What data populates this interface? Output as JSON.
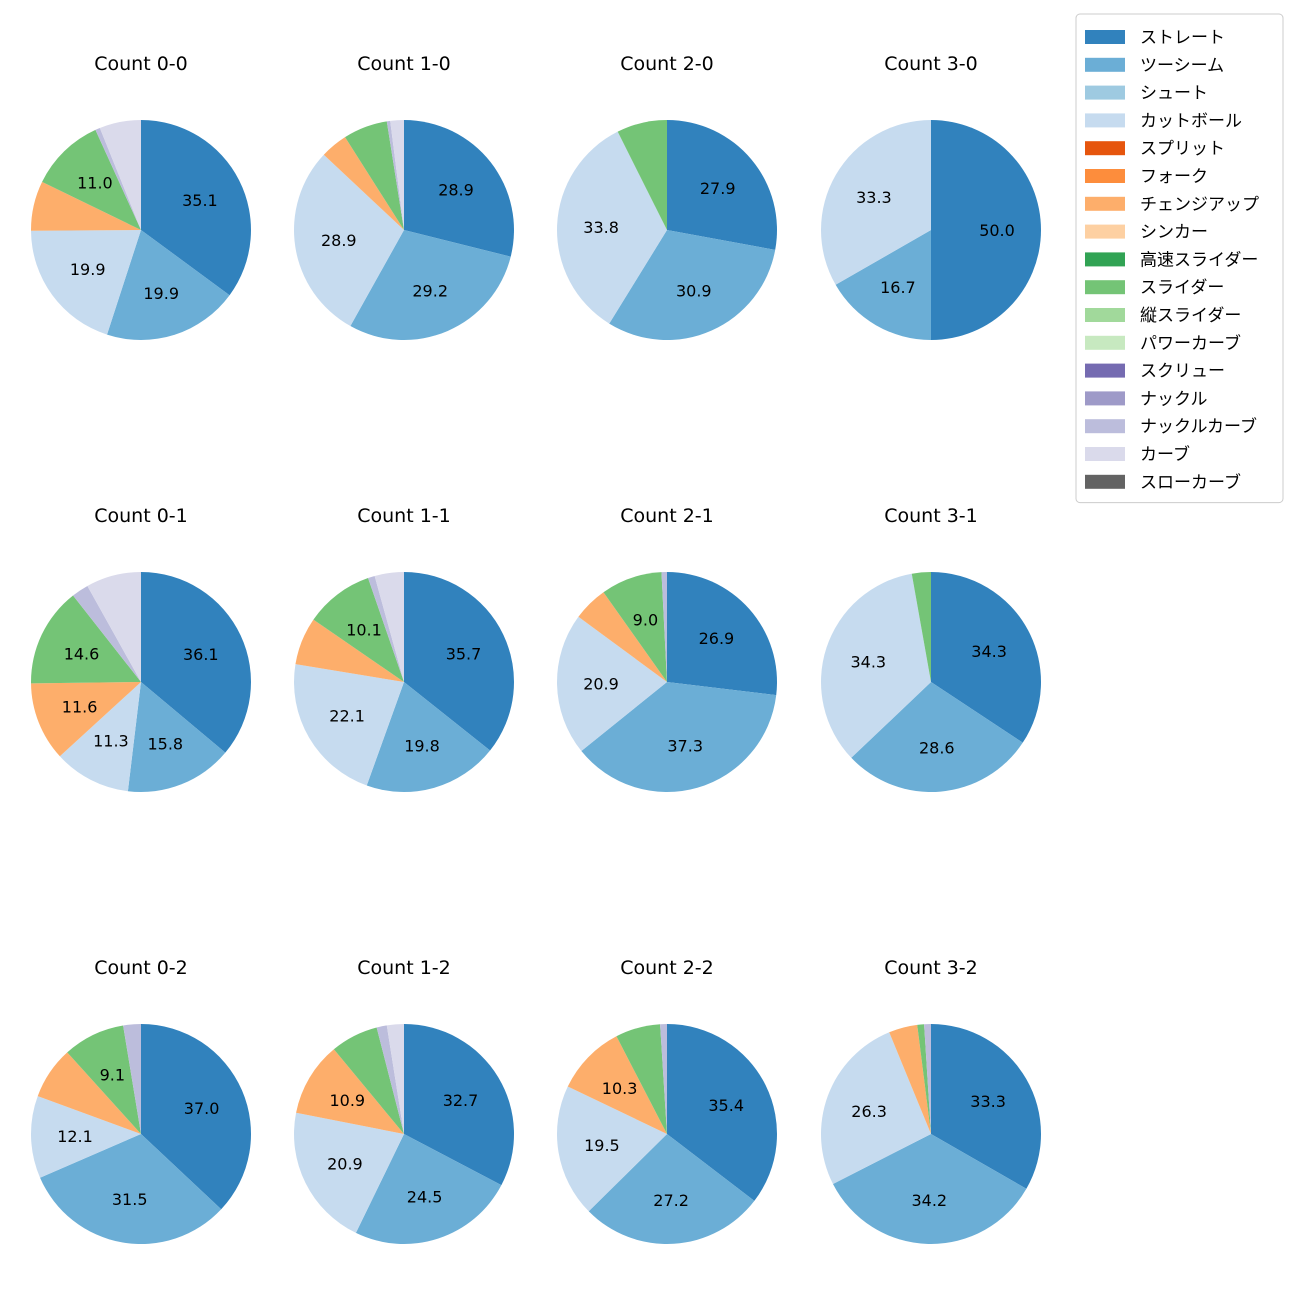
{
  "chart_data": {
    "type": "pie",
    "legend_position": "top-right",
    "legend": [
      {
        "name": "ストレート",
        "color": "#3182bd"
      },
      {
        "name": "ツーシーム",
        "color": "#6baed6"
      },
      {
        "name": "シュート",
        "color": "#9ecae1"
      },
      {
        "name": "カットボール",
        "color": "#c6dbef"
      },
      {
        "name": "スプリット",
        "color": "#e6550d"
      },
      {
        "name": "フォーク",
        "color": "#fd8d3c"
      },
      {
        "name": "チェンジアップ",
        "color": "#fdae6b"
      },
      {
        "name": "シンカー",
        "color": "#fdd0a2"
      },
      {
        "name": "高速スライダー",
        "color": "#31a354"
      },
      {
        "name": "スライダー",
        "color": "#74c476"
      },
      {
        "name": "縦スライダー",
        "color": "#a1d99b"
      },
      {
        "name": "パワーカーブ",
        "color": "#c7e9c0"
      },
      {
        "name": "スクリュー",
        "color": "#756bb1"
      },
      {
        "name": "ナックル",
        "color": "#9e9ac8"
      },
      {
        "name": "ナックルカーブ",
        "color": "#bcbddc"
      },
      {
        "name": "カーブ",
        "color": "#dadaeb"
      },
      {
        "name": "スローカーブ",
        "color": "#636363"
      }
    ],
    "pies": [
      {
        "title": "Count 0-0",
        "slices": [
          {
            "name": "ストレート",
            "value": 35.1,
            "label": "35.1"
          },
          {
            "name": "ツーシーム",
            "value": 19.9,
            "label": "19.9"
          },
          {
            "name": "カットボール",
            "value": 19.9,
            "label": "19.9"
          },
          {
            "name": "チェンジアップ",
            "value": 7.3,
            "label": ""
          },
          {
            "name": "スライダー",
            "value": 11.0,
            "label": "11.0"
          },
          {
            "name": "ナックルカーブ",
            "value": 0.7,
            "label": ""
          },
          {
            "name": "カーブ",
            "value": 6.1,
            "label": ""
          }
        ]
      },
      {
        "title": "Count 1-0",
        "slices": [
          {
            "name": "ストレート",
            "value": 28.9,
            "label": "28.9"
          },
          {
            "name": "ツーシーム",
            "value": 29.2,
            "label": "29.2"
          },
          {
            "name": "カットボール",
            "value": 28.9,
            "label": "28.9"
          },
          {
            "name": "チェンジアップ",
            "value": 4.0,
            "label": ""
          },
          {
            "name": "スライダー",
            "value": 6.5,
            "label": ""
          },
          {
            "name": "ナックルカーブ",
            "value": 0.5,
            "label": ""
          },
          {
            "name": "カーブ",
            "value": 2.0,
            "label": ""
          }
        ]
      },
      {
        "title": "Count 2-0",
        "slices": [
          {
            "name": "ストレート",
            "value": 27.9,
            "label": "27.9"
          },
          {
            "name": "ツーシーム",
            "value": 30.9,
            "label": "30.9"
          },
          {
            "name": "カットボール",
            "value": 33.8,
            "label": "33.8"
          },
          {
            "name": "スライダー",
            "value": 7.4,
            "label": ""
          }
        ]
      },
      {
        "title": "Count 3-0",
        "slices": [
          {
            "name": "ストレート",
            "value": 50.0,
            "label": "50.0"
          },
          {
            "name": "ツーシーム",
            "value": 16.7,
            "label": "16.7"
          },
          {
            "name": "カットボール",
            "value": 33.3,
            "label": "33.3"
          }
        ]
      },
      {
        "title": "Count 0-1",
        "slices": [
          {
            "name": "ストレート",
            "value": 36.1,
            "label": "36.1"
          },
          {
            "name": "ツーシーム",
            "value": 15.8,
            "label": "15.8"
          },
          {
            "name": "カットボール",
            "value": 11.3,
            "label": "11.3"
          },
          {
            "name": "チェンジアップ",
            "value": 11.6,
            "label": "11.6"
          },
          {
            "name": "スライダー",
            "value": 14.6,
            "label": "14.6"
          },
          {
            "name": "ナックルカーブ",
            "value": 2.5,
            "label": ""
          },
          {
            "name": "カーブ",
            "value": 8.1,
            "label": ""
          }
        ]
      },
      {
        "title": "Count 1-1",
        "slices": [
          {
            "name": "ストレート",
            "value": 35.7,
            "label": "35.7"
          },
          {
            "name": "ツーシーム",
            "value": 19.8,
            "label": "19.8"
          },
          {
            "name": "カットボール",
            "value": 22.1,
            "label": "22.1"
          },
          {
            "name": "チェンジアップ",
            "value": 7.0,
            "label": ""
          },
          {
            "name": "スライダー",
            "value": 10.1,
            "label": "10.1"
          },
          {
            "name": "ナックルカーブ",
            "value": 1.0,
            "label": ""
          },
          {
            "name": "カーブ",
            "value": 4.3,
            "label": ""
          }
        ]
      },
      {
        "title": "Count 2-1",
        "slices": [
          {
            "name": "ストレート",
            "value": 26.9,
            "label": "26.9"
          },
          {
            "name": "ツーシーム",
            "value": 37.3,
            "label": "37.3"
          },
          {
            "name": "カットボール",
            "value": 20.9,
            "label": "20.9"
          },
          {
            "name": "チェンジアップ",
            "value": 5.1,
            "label": ""
          },
          {
            "name": "スライダー",
            "value": 9.0,
            "label": "9.0"
          },
          {
            "name": "ナックルカーブ",
            "value": 0.8,
            "label": ""
          }
        ]
      },
      {
        "title": "Count 3-1",
        "slices": [
          {
            "name": "ストレート",
            "value": 34.3,
            "label": "34.3"
          },
          {
            "name": "ツーシーム",
            "value": 28.6,
            "label": "28.6"
          },
          {
            "name": "カットボール",
            "value": 34.3,
            "label": "34.3"
          },
          {
            "name": "スライダー",
            "value": 2.8,
            "label": ""
          }
        ]
      },
      {
        "title": "Count 0-2",
        "slices": [
          {
            "name": "ストレート",
            "value": 37.0,
            "label": "37.0"
          },
          {
            "name": "ツーシーム",
            "value": 31.5,
            "label": "31.5"
          },
          {
            "name": "カットボール",
            "value": 12.1,
            "label": "12.1"
          },
          {
            "name": "チェンジアップ",
            "value": 7.7,
            "label": ""
          },
          {
            "name": "スライダー",
            "value": 9.1,
            "label": "9.1"
          },
          {
            "name": "ナックルカーブ",
            "value": 2.6,
            "label": ""
          }
        ]
      },
      {
        "title": "Count 1-2",
        "slices": [
          {
            "name": "ストレート",
            "value": 32.7,
            "label": "32.7"
          },
          {
            "name": "ツーシーム",
            "value": 24.5,
            "label": "24.5"
          },
          {
            "name": "カットボール",
            "value": 20.9,
            "label": "20.9"
          },
          {
            "name": "チェンジアップ",
            "value": 10.9,
            "label": "10.9"
          },
          {
            "name": "スライダー",
            "value": 7.0,
            "label": ""
          },
          {
            "name": "ナックルカーブ",
            "value": 1.5,
            "label": ""
          },
          {
            "name": "カーブ",
            "value": 2.5,
            "label": ""
          }
        ]
      },
      {
        "title": "Count 2-2",
        "slices": [
          {
            "name": "ストレート",
            "value": 35.4,
            "label": "35.4"
          },
          {
            "name": "ツーシーム",
            "value": 27.2,
            "label": "27.2"
          },
          {
            "name": "カットボール",
            "value": 19.5,
            "label": "19.5"
          },
          {
            "name": "チェンジアップ",
            "value": 10.3,
            "label": "10.3"
          },
          {
            "name": "スライダー",
            "value": 6.6,
            "label": ""
          },
          {
            "name": "ナックルカーブ",
            "value": 1.0,
            "label": ""
          }
        ]
      },
      {
        "title": "Count 3-2",
        "slices": [
          {
            "name": "ストレート",
            "value": 33.3,
            "label": "33.3"
          },
          {
            "name": "ツーシーム",
            "value": 34.2,
            "label": "34.2"
          },
          {
            "name": "カットボール",
            "value": 26.3,
            "label": "26.3"
          },
          {
            "name": "チェンジアップ",
            "value": 4.2,
            "label": ""
          },
          {
            "name": "スライダー",
            "value": 1.0,
            "label": ""
          },
          {
            "name": "ナックルカーブ",
            "value": 1.0,
            "label": ""
          }
        ]
      }
    ]
  }
}
